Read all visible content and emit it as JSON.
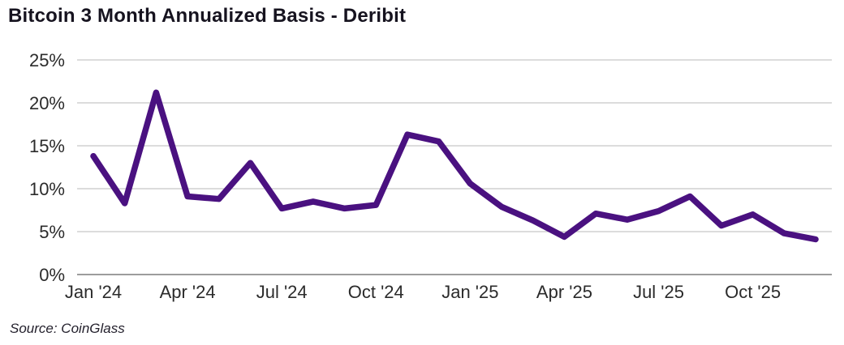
{
  "title": "Bitcoin 3 Month Annualized Basis - Deribit",
  "source": "Source: CoinGlass",
  "colors": {
    "line": "#4a1180",
    "grid": "#c7c7c7",
    "axis_line": "#7c7c7c",
    "tick_text": "#2b2b2b",
    "title_text": "#16131f",
    "background": "#ffffff"
  },
  "chart_data": {
    "type": "line",
    "title": "Bitcoin 3 Month Annualized Basis - Deribit",
    "series_name": "Bitcoin 3 month annualized basis (Deribit)",
    "x": [
      "Jan '24",
      "Feb '24",
      "Mar '24",
      "Apr '24",
      "May '24",
      "Jun '24",
      "Jul '24",
      "Aug '24",
      "Sep '24",
      "Oct '24",
      "Nov '24",
      "Dec '24",
      "Jan '25",
      "Feb '25",
      "Mar '25",
      "Apr '25",
      "May '25",
      "Jun '25",
      "Jul '25",
      "Aug '25",
      "Sep '25",
      "Oct '25",
      "Nov '25",
      "Dec '25"
    ],
    "values": [
      13.8,
      8.3,
      21.2,
      9.1,
      8.8,
      13.0,
      7.7,
      8.5,
      7.7,
      8.1,
      16.3,
      15.5,
      10.6,
      7.9,
      6.3,
      4.4,
      7.1,
      6.4,
      7.4,
      9.1,
      5.7,
      7.0,
      4.8,
      4.1
    ],
    "xlabel": "",
    "ylabel": "",
    "ylim": [
      0,
      25
    ],
    "yticks": [
      0,
      5,
      10,
      15,
      20,
      25
    ],
    "ytick_labels": [
      "0%",
      "5%",
      "10%",
      "15%",
      "20%",
      "25%"
    ],
    "xtick_labels_shown": [
      "Jan '24",
      "Apr '24",
      "Jul '24",
      "Oct '24",
      "Jan '25",
      "Apr '25",
      "Jul '25",
      "Oct '25"
    ],
    "xtick_every": 3,
    "grid": "horizontal",
    "legend": "none",
    "source": "Source: CoinGlass"
  }
}
